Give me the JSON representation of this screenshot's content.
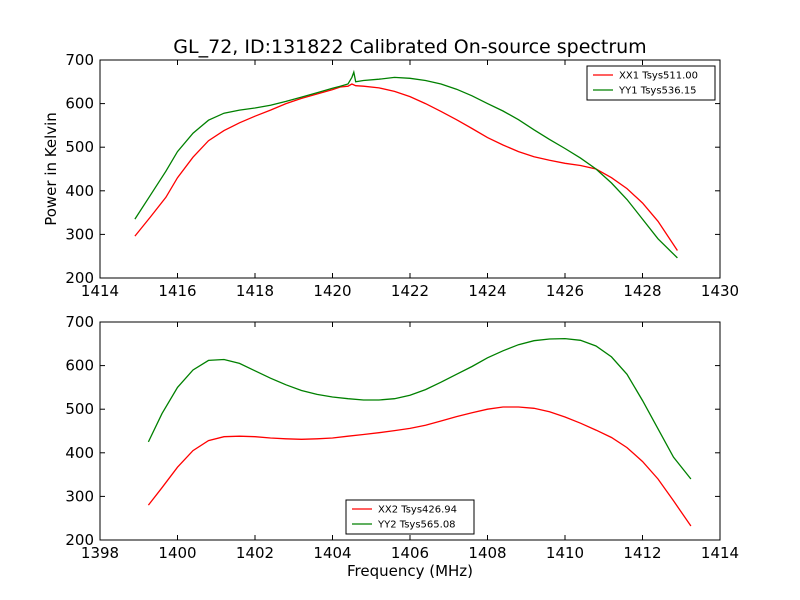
{
  "chart_data": [
    {
      "type": "line",
      "title": "GL_72, ID:131822 Calibrated On-source spectrum",
      "xlabel": "",
      "ylabel": "Power in Kelvin",
      "xlim": [
        1414,
        1430
      ],
      "ylim": [
        200,
        700
      ],
      "xticks": [
        "1414",
        "1416",
        "1418",
        "1420",
        "1422",
        "1424",
        "1426",
        "1428",
        "1430"
      ],
      "yticks": [
        "200",
        "300",
        "400",
        "500",
        "600",
        "700"
      ],
      "legend_position": "top-right",
      "series": [
        {
          "name": "XX1 Tsys511.00",
          "color": "#ff0000",
          "x": [
            1414.9,
            1415.3,
            1415.7,
            1416.0,
            1416.4,
            1416.8,
            1417.2,
            1417.6,
            1418.0,
            1418.4,
            1418.8,
            1419.2,
            1419.6,
            1420.0,
            1420.2,
            1420.4,
            1420.5,
            1420.6,
            1420.8,
            1421.2,
            1421.6,
            1422.0,
            1422.4,
            1422.8,
            1423.2,
            1423.6,
            1424.0,
            1424.4,
            1424.8,
            1425.2,
            1425.6,
            1426.0,
            1426.4,
            1426.8,
            1427.2,
            1427.6,
            1428.0,
            1428.4,
            1428.9
          ],
          "y": [
            296,
            340,
            385,
            430,
            477,
            515,
            538,
            556,
            571,
            585,
            600,
            612,
            622,
            632,
            638,
            640,
            645,
            641,
            640,
            636,
            628,
            616,
            600,
            582,
            563,
            543,
            522,
            505,
            490,
            478,
            470,
            463,
            458,
            450,
            430,
            405,
            372,
            330,
            263
          ]
        },
        {
          "name": "YY1 Tsys536.15",
          "color": "#008000",
          "x": [
            1414.9,
            1415.3,
            1415.7,
            1416.0,
            1416.4,
            1416.8,
            1417.2,
            1417.6,
            1418.0,
            1418.4,
            1418.8,
            1419.2,
            1419.6,
            1420.0,
            1420.2,
            1420.4,
            1420.5,
            1420.55,
            1420.6,
            1420.8,
            1421.2,
            1421.6,
            1422.0,
            1422.4,
            1422.8,
            1423.2,
            1423.6,
            1424.0,
            1424.4,
            1424.8,
            1425.2,
            1425.6,
            1426.0,
            1426.4,
            1426.8,
            1427.2,
            1427.6,
            1428.0,
            1428.4,
            1428.9
          ],
          "y": [
            335,
            390,
            445,
            490,
            532,
            562,
            578,
            585,
            590,
            596,
            605,
            615,
            625,
            635,
            640,
            645,
            660,
            672,
            650,
            653,
            656,
            660,
            658,
            653,
            645,
            633,
            618,
            600,
            583,
            563,
            540,
            518,
            497,
            475,
            450,
            418,
            380,
            335,
            290,
            246
          ]
        }
      ]
    },
    {
      "type": "line",
      "title": "",
      "xlabel": "Frequency (MHz)",
      "ylabel": "",
      "xlim": [
        1398,
        1414
      ],
      "ylim": [
        200,
        700
      ],
      "xticks": [
        "1398",
        "1400",
        "1402",
        "1404",
        "1406",
        "1408",
        "1410",
        "1412",
        "1414"
      ],
      "yticks": [
        "200",
        "300",
        "400",
        "500",
        "600",
        "700"
      ],
      "legend_position": "bottom-center",
      "series": [
        {
          "name": "XX2 Tsys426.94",
          "color": "#ff0000",
          "x": [
            1399.25,
            1399.6,
            1400.0,
            1400.4,
            1400.8,
            1401.2,
            1401.6,
            1402.0,
            1402.4,
            1402.8,
            1403.2,
            1403.6,
            1404.0,
            1404.4,
            1404.8,
            1405.2,
            1405.6,
            1406.0,
            1406.4,
            1406.8,
            1407.2,
            1407.6,
            1408.0,
            1408.4,
            1408.8,
            1409.2,
            1409.6,
            1410.0,
            1410.4,
            1410.8,
            1411.2,
            1411.6,
            1412.0,
            1412.4,
            1412.8,
            1413.25
          ],
          "y": [
            280,
            320,
            367,
            405,
            428,
            437,
            438,
            437,
            434,
            432,
            431,
            432,
            434,
            438,
            442,
            446,
            451,
            456,
            463,
            473,
            483,
            492,
            500,
            505,
            505,
            502,
            494,
            482,
            468,
            452,
            435,
            412,
            380,
            340,
            290,
            232
          ]
        },
        {
          "name": "YY2 Tsys565.08",
          "color": "#008000",
          "x": [
            1399.25,
            1399.6,
            1400.0,
            1400.4,
            1400.8,
            1401.2,
            1401.6,
            1402.0,
            1402.4,
            1402.8,
            1403.2,
            1403.6,
            1404.0,
            1404.4,
            1404.8,
            1405.2,
            1405.6,
            1406.0,
            1406.4,
            1406.8,
            1407.2,
            1407.6,
            1408.0,
            1408.4,
            1408.8,
            1409.2,
            1409.6,
            1410.0,
            1410.4,
            1410.8,
            1411.2,
            1411.6,
            1412.0,
            1412.4,
            1412.8,
            1413.25
          ],
          "y": [
            425,
            490,
            550,
            590,
            612,
            614,
            605,
            588,
            571,
            556,
            543,
            534,
            528,
            524,
            521,
            521,
            524,
            532,
            545,
            562,
            580,
            598,
            618,
            634,
            648,
            657,
            661,
            662,
            658,
            645,
            620,
            580,
            520,
            455,
            390,
            340
          ]
        }
      ]
    }
  ]
}
